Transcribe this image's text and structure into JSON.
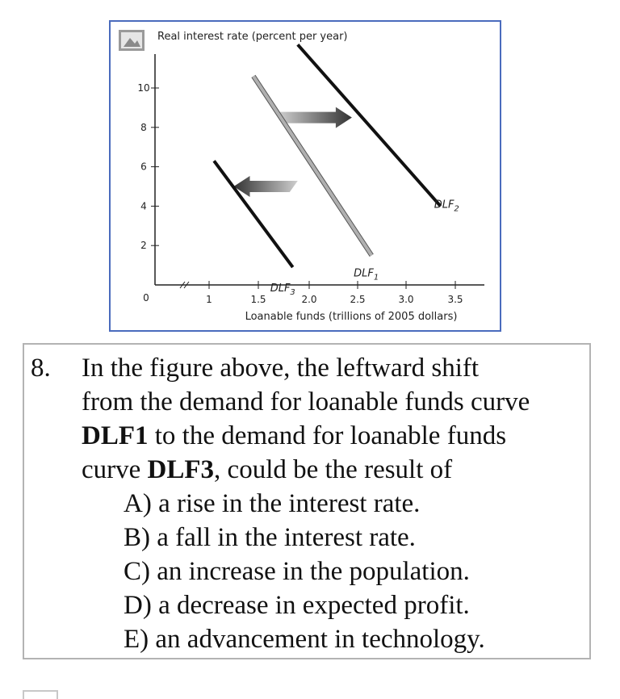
{
  "chart_data": {
    "type": "line",
    "ylabel": "Real interest rate (percent per year)",
    "xlabel": "Loanable funds (trillions of 2005 dollars)",
    "x_ticks": [
      "1",
      "1.5",
      "2.0",
      "2.5",
      "3.0",
      "3.5"
    ],
    "y_ticks": [
      "2",
      "4",
      "6",
      "8",
      "10"
    ],
    "origin_label": "0",
    "series": [
      {
        "name": "DLF1",
        "label_main": "DLF",
        "label_sub": "1",
        "color": "#b0b0b0",
        "points": [
          [
            1.45,
            10.6
          ],
          [
            2.65,
            1.5
          ]
        ]
      },
      {
        "name": "DLF2",
        "label_main": "DLF",
        "label_sub": "2",
        "color": "#111111",
        "points": [
          [
            1.9,
            12.2
          ],
          [
            3.35,
            4.0
          ]
        ]
      },
      {
        "name": "DLF3",
        "label_main": "DLF",
        "label_sub": "3",
        "color": "#111111",
        "points": [
          [
            1.05,
            6.3
          ],
          [
            1.85,
            0.9
          ]
        ]
      }
    ],
    "annotations": [
      {
        "type": "arrow",
        "direction": "right",
        "color": "#444444",
        "from": [
          1.7,
          8.5
        ],
        "to": [
          2.45,
          8.5
        ]
      },
      {
        "type": "arrow",
        "direction": "left",
        "color": "#444444",
        "from": [
          1.9,
          5.0
        ],
        "to": [
          1.25,
          5.0
        ]
      }
    ],
    "xlim": [
      0.6,
      3.8
    ],
    "ylim": [
      0,
      12.5
    ],
    "axis_break": true,
    "grid": false,
    "legend": "none"
  },
  "question": {
    "number": "8.",
    "line1": "In the figure above, the leftward shift",
    "line2": "from the demand for loanable funds curve",
    "line3_bold": "DLF1",
    "line3_rest": " to the demand for loanable funds",
    "line4_pre": "curve ",
    "line4_bold": "DLF3",
    "line4_rest": ", could be the result of",
    "options": [
      "A) a rise in the interest rate.",
      "B) a fall in the interest rate.",
      "C) an increase in the population.",
      "D) a decrease in expected profit.",
      "E) an advancement in technology."
    ]
  },
  "icons": {
    "broken_image": "image-icon"
  }
}
